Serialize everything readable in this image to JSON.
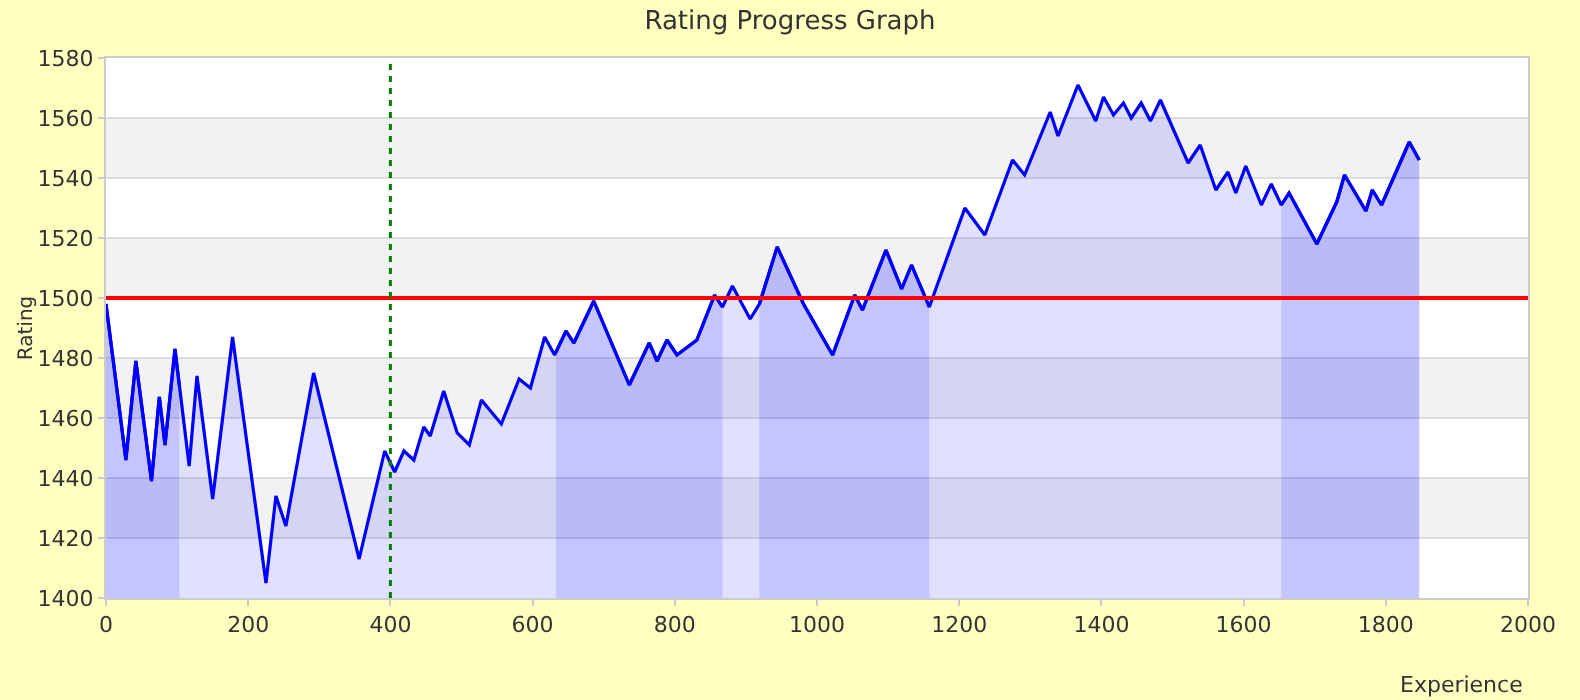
{
  "chart_data": {
    "type": "area",
    "title": "Rating Progress Graph",
    "xlabel": "Experience",
    "ylabel": "Rating",
    "xlim": [
      0,
      2000
    ],
    "xticks": [
      0,
      200,
      400,
      600,
      800,
      1000,
      1200,
      1400,
      1600,
      1800,
      2000
    ],
    "ylim": [
      1400,
      1580
    ],
    "yticks": [
      1400,
      1420,
      1440,
      1460,
      1480,
      1500,
      1520,
      1540,
      1560,
      1580
    ],
    "grid": "y",
    "marker": "none",
    "series": [
      {
        "color": "#0000ff",
        "x": [
          0,
          28,
          42,
          64,
          75,
          83,
          97,
          103
        ],
        "values": [
          1498,
          1446,
          1479,
          1439,
          1467,
          1451,
          1483,
          1471
        ]
      },
      {
        "color": "#0000ff",
        "x": [
          633,
          647,
          658,
          686,
          736,
          764,
          775,
          789,
          803,
          831,
          856,
          867
        ],
        "values": [
          1482,
          1489,
          1485,
          1499,
          1471,
          1485,
          1479,
          1486,
          1481,
          1486,
          1501,
          1497
        ]
      },
      {
        "color": "#0000ff",
        "x": [
          919,
          944,
          981,
          1022,
          1053,
          1064,
          1097,
          1119,
          1133,
          1158
        ],
        "values": [
          1498,
          1517,
          1498,
          1481,
          1501,
          1496,
          1516,
          1503,
          1511,
          1497
        ]
      },
      {
        "color": "#0000ff",
        "x": [
          1653,
          1664,
          1703,
          1731,
          1742,
          1772,
          1781,
          1794,
          1833,
          1847
        ],
        "values": [
          1531,
          1535,
          1518,
          1532,
          1541,
          1529,
          1536,
          1531,
          1552,
          1546
        ]
      },
      {
        "color": "#0000ff",
        "x": [
          0,
          28,
          42,
          64,
          75,
          83,
          97,
          117,
          128,
          150,
          178,
          225,
          239,
          253,
          292,
          356,
          392,
          406,
          419,
          433,
          447,
          456,
          475,
          494,
          511,
          528,
          556,
          581,
          597,
          617,
          631,
          647,
          658,
          686,
          736,
          764,
          775,
          789,
          803,
          831,
          856,
          867,
          881,
          906,
          919,
          944,
          981,
          1022,
          1053,
          1064,
          1097,
          1119,
          1133,
          1158,
          1208,
          1236,
          1275,
          1292,
          1328,
          1339,
          1367,
          1392,
          1403,
          1417,
          1431,
          1442,
          1456,
          1469,
          1483,
          1522,
          1539,
          1561,
          1578,
          1589,
          1603,
          1625,
          1639,
          1653,
          1664,
          1703,
          1731,
          1742,
          1772,
          1781,
          1794,
          1833,
          1847
        ],
        "values": [
          1498,
          1446,
          1479,
          1439,
          1467,
          1451,
          1483,
          1444,
          1474,
          1433,
          1487,
          1405,
          1434,
          1424,
          1475,
          1413,
          1449,
          1442,
          1449,
          1446,
          1457,
          1454,
          1469,
          1455,
          1451,
          1466,
          1458,
          1473,
          1470,
          1487,
          1481,
          1489,
          1485,
          1499,
          1471,
          1485,
          1479,
          1486,
          1481,
          1486,
          1501,
          1497,
          1504,
          1493,
          1498,
          1517,
          1498,
          1481,
          1501,
          1496,
          1516,
          1503,
          1511,
          1497,
          1530,
          1521,
          1546,
          1541,
          1562,
          1554,
          1571,
          1559,
          1567,
          1561,
          1565,
          1560,
          1565,
          1559,
          1566,
          1545,
          1551,
          1536,
          1542,
          1535,
          1544,
          1531,
          1538,
          1531,
          1535,
          1518,
          1532,
          1541,
          1529,
          1536,
          1531,
          1552,
          1546
        ]
      }
    ],
    "ref_lines": [
      {
        "axis": "y",
        "value": 1500,
        "color": "#ff0000",
        "line_style": "solid"
      },
      {
        "axis": "x",
        "value": 400,
        "color": "#008000",
        "line_style": "dotted"
      }
    ],
    "bands": [
      {
        "axis": "y",
        "from": 1420,
        "to": 1440,
        "color": "#f2f2f2"
      },
      {
        "axis": "y",
        "from": 1460,
        "to": 1480,
        "color": "#f2f2f2"
      },
      {
        "axis": "y",
        "from": 1500,
        "to": 1520,
        "color": "#f2f2f2"
      },
      {
        "axis": "y",
        "from": 1540,
        "to": 1560,
        "color": "#f2f2f2"
      }
    ]
  }
}
